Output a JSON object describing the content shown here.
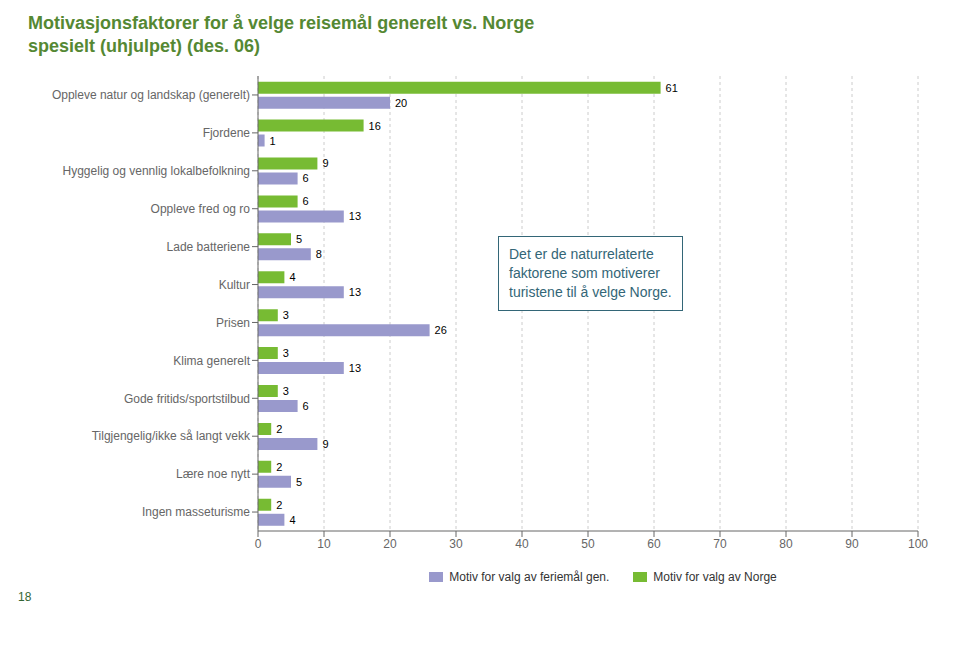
{
  "chart_data": {
    "type": "bar",
    "orientation": "horizontal",
    "title": "Motivasjonsfaktorer for å velge reisemål generelt vs. Norge",
    "subtitle": "spesielt (uhjulpet) (des. 06)",
    "categories": [
      "Oppleve natur og landskap (generelt)",
      "Fjordene",
      "Hyggelig og vennlig lokalbefolkning",
      "Oppleve fred og ro",
      "Lade batteriene",
      "Kultur",
      "Prisen",
      "Klima generelt",
      "Gode fritids/sportstilbud",
      "Tilgjengelig/ikke så langt vekk",
      "Lære noe nytt",
      "Ingen masseturisme"
    ],
    "series": [
      {
        "name": "Motiv for valg av feriemål gen.",
        "color": "#9999cc",
        "values": [
          20,
          1,
          6,
          13,
          8,
          13,
          26,
          13,
          6,
          9,
          5,
          4
        ]
      },
      {
        "name": "Motiv for valg av Norge",
        "color": "#77bb33",
        "values": [
          61,
          16,
          9,
          6,
          5,
          4,
          3,
          3,
          3,
          2,
          2,
          2
        ]
      }
    ],
    "xlim": [
      0,
      100
    ],
    "xticks": [
      0,
      10,
      20,
      30,
      40,
      50,
      60,
      70,
      80,
      90,
      100
    ],
    "grid": true,
    "data_labels": true,
    "annotations": [
      "Det er de naturrelaterte\nfaktorene som motiverer\nturistene til å velge Norge."
    ],
    "footnote": "18"
  }
}
